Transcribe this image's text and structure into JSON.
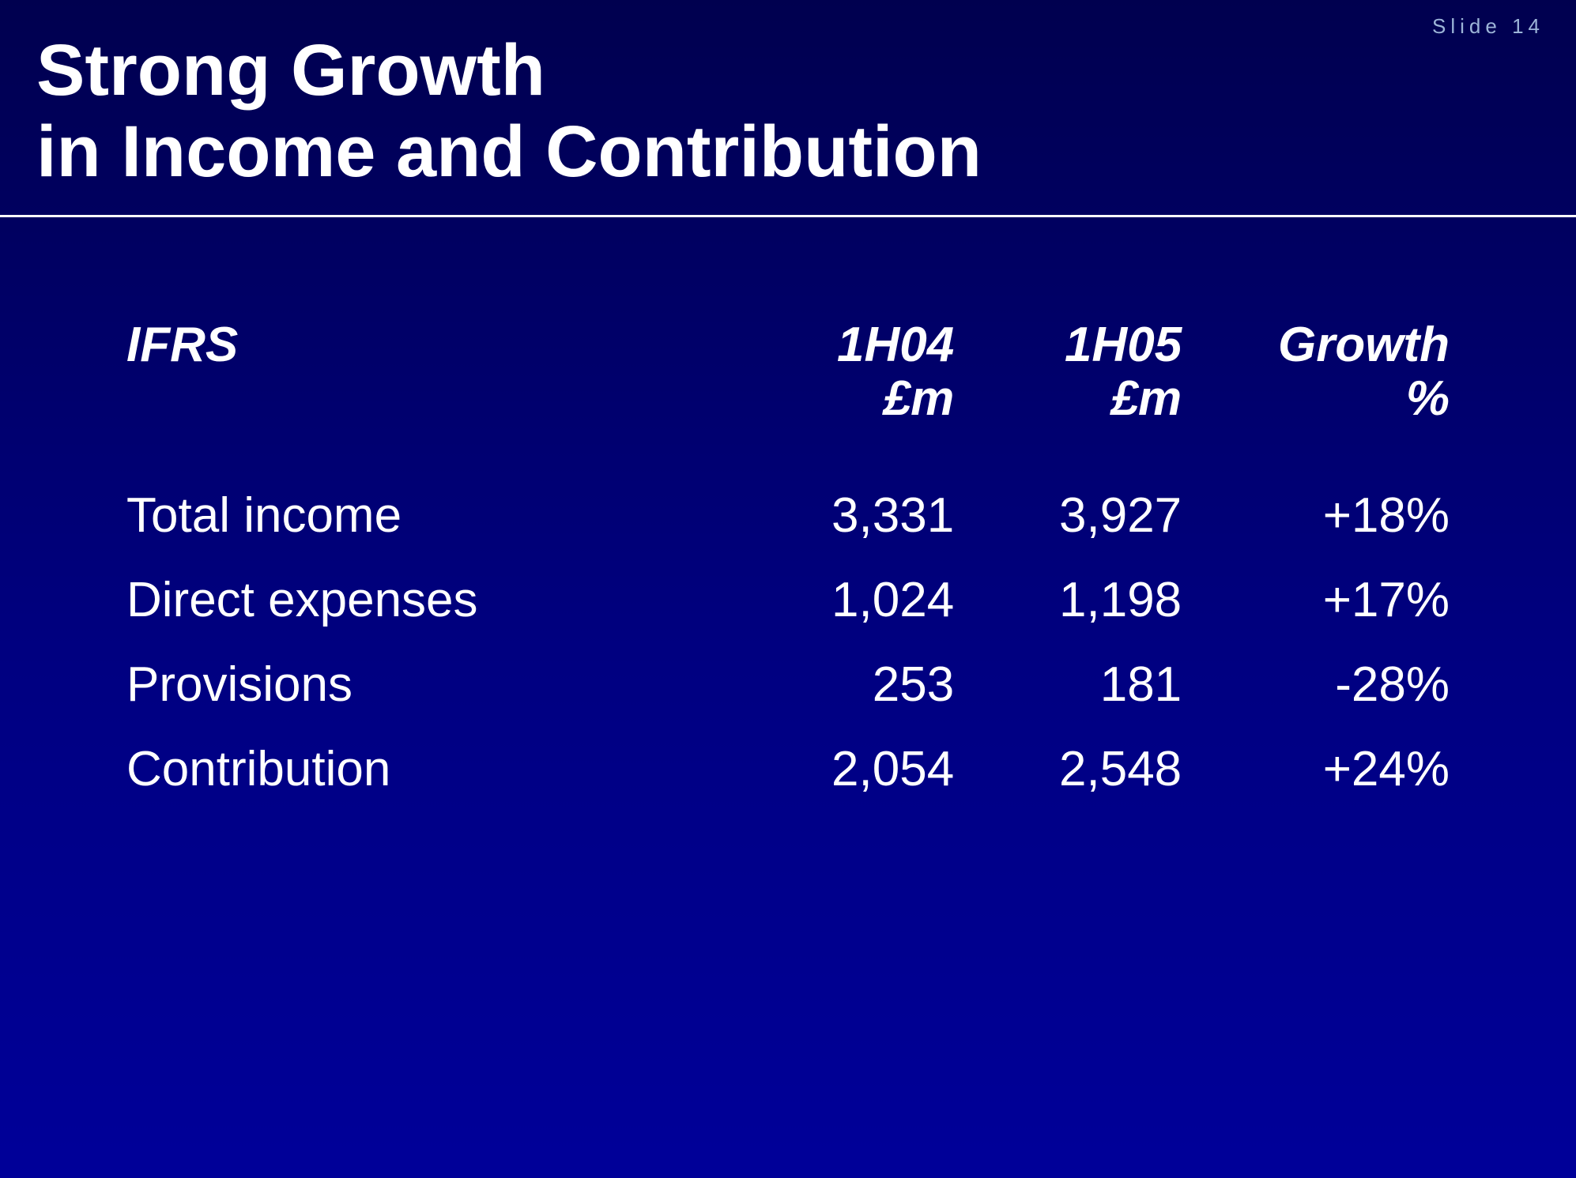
{
  "slide": {
    "number_label": "Slide 14",
    "title_line1": "Strong Growth",
    "title_line2": "in Income and Contribution"
  },
  "table": {
    "type": "table",
    "background_color_top": "#00004f",
    "background_color_bottom": "#000099",
    "text_color": "#ffffff",
    "header_font_style": "italic",
    "header_font_weight": "bold",
    "header_font_size_pt": 32,
    "body_font_size_pt": 32,
    "columns": [
      {
        "key": "label",
        "header_line1": "IFRS",
        "header_line2": "",
        "align": "left"
      },
      {
        "key": "h04",
        "header_line1": "1H04",
        "header_line2": "£m",
        "align": "right"
      },
      {
        "key": "h05",
        "header_line1": "1H05",
        "header_line2": "£m",
        "align": "right"
      },
      {
        "key": "growth",
        "header_line1": "Growth",
        "header_line2": "%",
        "align": "right"
      }
    ],
    "rows": [
      {
        "label": "Total income",
        "h04": "3,331",
        "h05": "3,927",
        "growth": "+18%"
      },
      {
        "label": "Direct expenses",
        "h04": "1,024",
        "h05": "1,198",
        "growth": "+17%"
      },
      {
        "label": "Provisions",
        "h04": "253",
        "h05": "181",
        "growth": "-28%"
      },
      {
        "label": "Contribution",
        "h04": "2,054",
        "h05": "2,548",
        "growth": "+24%"
      }
    ]
  }
}
